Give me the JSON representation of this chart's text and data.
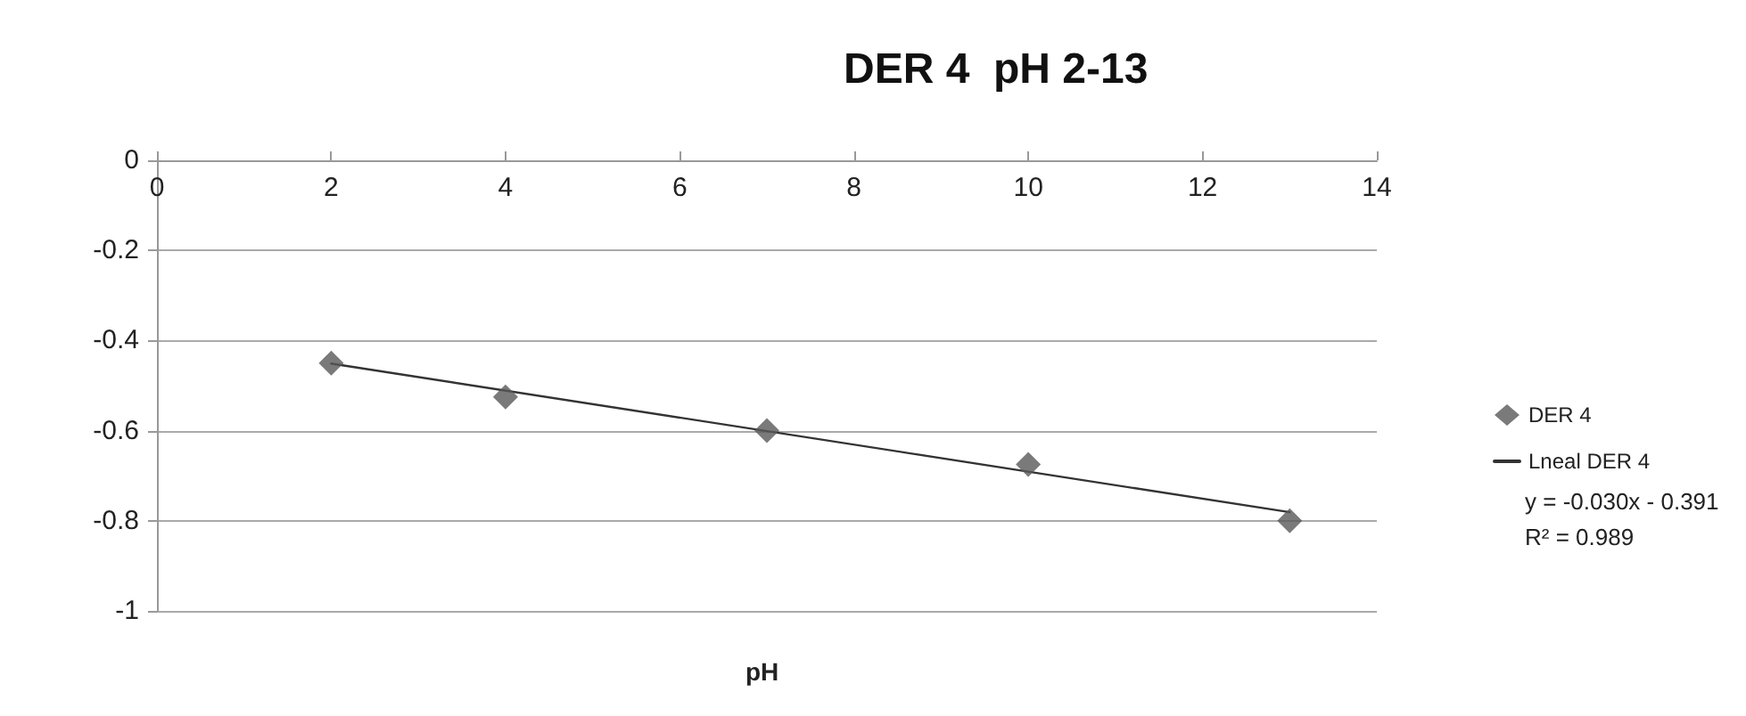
{
  "chart_data": {
    "type": "scatter",
    "title": "DER 4  pH 2-13",
    "xlabel": "pH",
    "xlim": [
      0,
      14
    ],
    "xticks": [
      0,
      2,
      4,
      6,
      8,
      10,
      12,
      14
    ],
    "ylim": [
      -1,
      0
    ],
    "yticks": [
      -1,
      -0.8,
      -0.6,
      -0.4,
      -0.2,
      0
    ],
    "grid": "y",
    "legend": "right",
    "marker": "diamond",
    "annotations": [
      "y = -0.030x - 0.391",
      "R² = 0.989"
    ],
    "series": [
      {
        "name": "DER 4",
        "color": "#595959",
        "x": [
          2,
          4,
          7,
          10,
          13
        ],
        "values": [
          -0.45,
          -0.525,
          -0.6,
          -0.675,
          -0.8
        ]
      },
      {
        "name": "Lneal DER 4",
        "type": "line",
        "marker": "none",
        "line_style": "solid",
        "color": "#333333",
        "x": [
          2,
          13
        ],
        "values": [
          -0.451,
          -0.781
        ]
      }
    ]
  }
}
